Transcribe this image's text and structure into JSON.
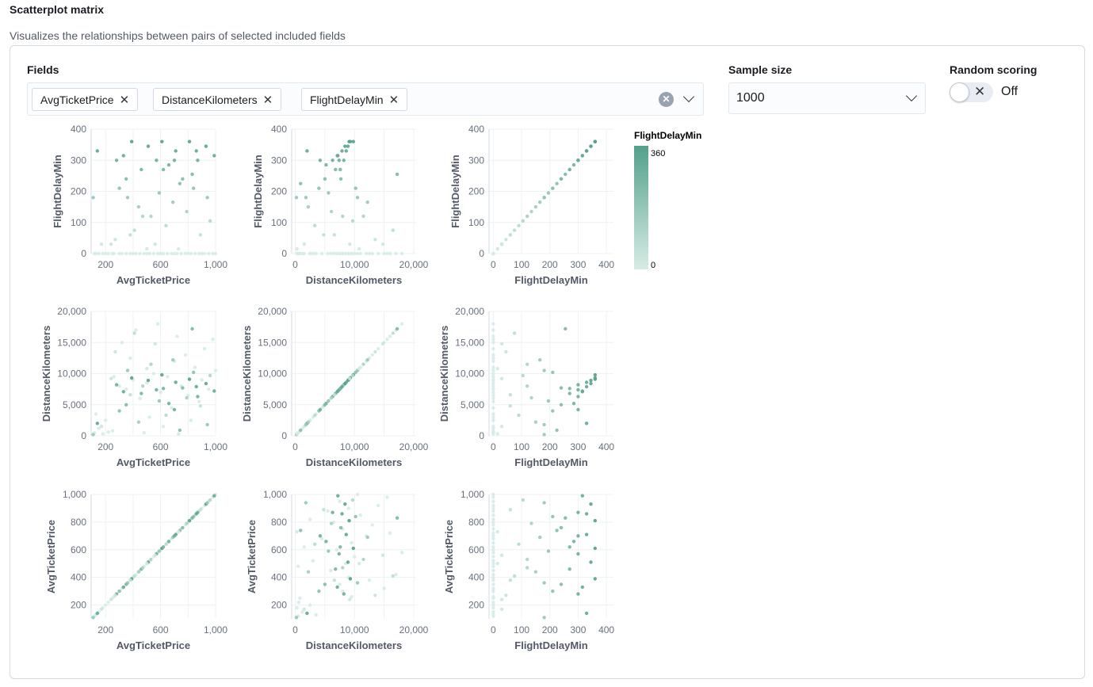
{
  "header": {
    "title": "Scatterplot matrix",
    "subtitle": "Visualizes the relationships between pairs of selected included fields"
  },
  "controls": {
    "fields_label": "Fields",
    "selected_fields": [
      "AvgTicketPrice",
      "DistanceKilometers",
      "FlightDelayMin"
    ],
    "sample_size_label": "Sample size",
    "sample_size_value": "1000",
    "random_scoring_label": "Random scoring",
    "random_scoring_state": "Off"
  },
  "icons": {
    "remove": "close-icon",
    "clear": "clear-circle-icon",
    "dropdown": "chevron-down-icon",
    "toggle": "toggle-switch"
  },
  "chart_data": {
    "type": "scatter",
    "layout": "scatterplot-matrix",
    "fields": [
      "AvgTicketPrice",
      "DistanceKilometers",
      "FlightDelayMin"
    ],
    "row_fields": [
      "FlightDelayMin",
      "DistanceKilometers",
      "AvgTicketPrice"
    ],
    "col_fields": [
      "AvgTicketPrice",
      "DistanceKilometers",
      "FlightDelayMin"
    ],
    "grid": true,
    "axes": {
      "AvgTicketPrice": {
        "x_domain": [
          95,
          1000
        ],
        "y_domain": [
          100,
          1000
        ],
        "x_ticks": [
          200,
          600,
          1000
        ],
        "x_grid": [
          200,
          400,
          600,
          800,
          1000
        ],
        "y_ticks": [
          200,
          400,
          600,
          800,
          1000
        ],
        "x_tick_labels": [
          "200",
          "600",
          "1,000"
        ],
        "y_tick_labels": [
          "200",
          "400",
          "600",
          "800",
          "1,000"
        ]
      },
      "DistanceKilometers": {
        "x_domain": [
          -600,
          20400
        ],
        "y_domain": [
          0,
          20000
        ],
        "x_ticks": [
          0,
          10000,
          20000
        ],
        "x_grid": [
          0,
          5000,
          10000,
          15000,
          20000
        ],
        "y_ticks": [
          0,
          5000,
          10000,
          15000,
          20000
        ],
        "x_tick_labels": [
          "0",
          "10,000",
          "20,000"
        ],
        "y_tick_labels": [
          "0",
          "5,000",
          "10,000",
          "15,000",
          "20,000"
        ]
      },
      "FlightDelayMin": {
        "x_domain": [
          -15,
          425
        ],
        "y_domain": [
          0,
          400
        ],
        "x_ticks": [
          0,
          100,
          200,
          300,
          400
        ],
        "x_grid": [
          0,
          100,
          200,
          300,
          400
        ],
        "y_ticks": [
          0,
          100,
          200,
          300,
          400
        ],
        "x_tick_labels": [
          "0",
          "100",
          "200",
          "300",
          "400"
        ],
        "y_tick_labels": [
          "0",
          "100",
          "200",
          "300",
          "400"
        ]
      }
    },
    "color": {
      "field": "FlightDelayMin",
      "min": 0,
      "max": 360,
      "min_label": "0",
      "max_label": "360",
      "low_color": "#d6ece5",
      "high_color": "#54a08a"
    },
    "records": [
      [
        120,
        500,
        0
      ],
      [
        150,
        1200,
        0
      ],
      [
        180,
        300,
        0
      ],
      [
        200,
        2500,
        0
      ],
      [
        130,
        3500,
        0
      ],
      [
        250,
        800,
        0
      ],
      [
        170,
        1500,
        30
      ],
      [
        220,
        600,
        0
      ],
      [
        110,
        200,
        180
      ],
      [
        140,
        2000,
        330
      ],
      [
        300,
        8000,
        0
      ],
      [
        350,
        7500,
        0
      ],
      [
        400,
        9000,
        0
      ],
      [
        450,
        6000,
        0
      ],
      [
        500,
        8500,
        0
      ],
      [
        550,
        10000,
        0
      ],
      [
        600,
        7000,
        0
      ],
      [
        650,
        9500,
        0
      ],
      [
        700,
        12000,
        0
      ],
      [
        750,
        8000,
        0
      ],
      [
        800,
        6500,
        0
      ],
      [
        850,
        11000,
        0
      ],
      [
        900,
        9000,
        0
      ],
      [
        950,
        7500,
        0
      ],
      [
        1000,
        10500,
        0
      ],
      [
        320,
        15000,
        0
      ],
      [
        420,
        17000,
        0
      ],
      [
        520,
        3000,
        0
      ],
      [
        620,
        1500,
        0
      ],
      [
        720,
        16000,
        0
      ],
      [
        820,
        2500,
        0
      ],
      [
        920,
        14000,
        0
      ],
      [
        380,
        12500,
        0
      ],
      [
        480,
        500,
        0
      ],
      [
        580,
        18000,
        0
      ],
      [
        680,
        4500,
        0
      ],
      [
        780,
        13000,
        0
      ],
      [
        880,
        5500,
        0
      ],
      [
        980,
        15500,
        0
      ],
      [
        260,
        9500,
        0
      ],
      [
        280,
        8200,
        300
      ],
      [
        330,
        7100,
        315
      ],
      [
        390,
        9300,
        360
      ],
      [
        460,
        6800,
        270
      ],
      [
        510,
        8900,
        345
      ],
      [
        570,
        7400,
        300
      ],
      [
        610,
        9800,
        360
      ],
      [
        660,
        5200,
        285
      ],
      [
        710,
        8600,
        330
      ],
      [
        760,
        7700,
        240
      ],
      [
        810,
        9100,
        360
      ],
      [
        870,
        6300,
        300
      ],
      [
        930,
        8400,
        345
      ],
      [
        990,
        7200,
        315
      ],
      [
        300,
        4000,
        210
      ],
      [
        360,
        10500,
        180
      ],
      [
        440,
        2200,
        150
      ],
      [
        530,
        11500,
        120
      ],
      [
        590,
        5600,
        195
      ],
      [
        640,
        3300,
        90
      ],
      [
        690,
        12200,
        165
      ],
      [
        740,
        900,
        225
      ],
      [
        790,
        6100,
        135
      ],
      [
        840,
        10200,
        210
      ],
      [
        890,
        4800,
        60
      ],
      [
        960,
        9700,
        105
      ],
      [
        270,
        13500,
        45
      ],
      [
        410,
        16500,
        75
      ],
      [
        560,
        14800,
        30
      ],
      [
        730,
        300,
        15
      ],
      [
        830,
        17200,
        255
      ],
      [
        940,
        1800,
        180
      ],
      [
        350,
        5000,
        240
      ],
      [
        470,
        8000,
        120
      ],
      [
        620,
        7600,
        270
      ],
      [
        700,
        4200,
        300
      ],
      [
        860,
        7900,
        330
      ],
      [
        500,
        10800,
        15
      ],
      [
        240,
        9200,
        30
      ],
      [
        380,
        6600,
        60
      ]
    ]
  }
}
